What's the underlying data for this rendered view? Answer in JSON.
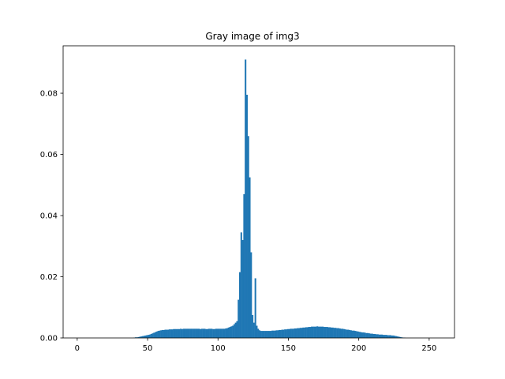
{
  "chart_data": {
    "type": "bar",
    "title": "Gray image of img3",
    "xlabel": "",
    "ylabel": "",
    "xlim": [
      -10,
      268
    ],
    "ylim": [
      0,
      0.0955
    ],
    "xticks": [
      0,
      50,
      100,
      150,
      200,
      250
    ],
    "xtick_labels": [
      "0",
      "50",
      "100",
      "150",
      "200",
      "250"
    ],
    "yticks": [
      0.0,
      0.02,
      0.04,
      0.06,
      0.08
    ],
    "ytick_labels": [
      "0.00",
      "0.02",
      "0.04",
      "0.06",
      "0.08"
    ],
    "grid": false,
    "bar_color": "#1f77b4",
    "bins": {
      "start": 0,
      "width": 1
    },
    "values": [
      0.0,
      0.0,
      0.0,
      0.0,
      0.0,
      0.0,
      0.0,
      0.0,
      0.0,
      0.0,
      0.0,
      0.0,
      0.0,
      0.0,
      0.0,
      0.0,
      0.0,
      0.0,
      0.0,
      0.0,
      0.0,
      0.0,
      0.0,
      0.0,
      0.0,
      0.0,
      0.0,
      0.0,
      0.0,
      0.0,
      0.0,
      0.0,
      0.0,
      0.0,
      0.0,
      0.0,
      0.0,
      0.0,
      0.0,
      0.0,
      0.0001,
      0.0002,
      0.0002,
      0.0003,
      0.0004,
      0.0005,
      0.0006,
      0.0007,
      0.0008,
      0.0009,
      0.001,
      0.0011,
      0.0013,
      0.0015,
      0.0017,
      0.0019,
      0.0021,
      0.0023,
      0.0024,
      0.0025,
      0.0026,
      0.0026,
      0.0027,
      0.0027,
      0.0027,
      0.0028,
      0.0028,
      0.0028,
      0.0029,
      0.0029,
      0.0029,
      0.0029,
      0.0029,
      0.003,
      0.0029,
      0.003,
      0.003,
      0.003,
      0.003,
      0.003,
      0.003,
      0.003,
      0.003,
      0.003,
      0.003,
      0.003,
      0.003,
      0.0029,
      0.003,
      0.003,
      0.003,
      0.0029,
      0.0029,
      0.003,
      0.003,
      0.003,
      0.0029,
      0.0029,
      0.003,
      0.003,
      0.003,
      0.003,
      0.003,
      0.003,
      0.003,
      0.0031,
      0.0032,
      0.0034,
      0.0036,
      0.0038,
      0.004,
      0.0045,
      0.005,
      0.0055,
      0.0125,
      0.0215,
      0.0345,
      0.032,
      0.047,
      0.091,
      0.0795,
      0.066,
      0.0525,
      0.028,
      0.0075,
      0.005,
      0.0195,
      0.004,
      0.003,
      0.0025,
      0.0023,
      0.0023,
      0.0023,
      0.0023,
      0.0023,
      0.0023,
      0.0023,
      0.0023,
      0.0024,
      0.0024,
      0.0024,
      0.0025,
      0.0025,
      0.0026,
      0.0026,
      0.0027,
      0.0027,
      0.0028,
      0.0028,
      0.0029,
      0.0029,
      0.003,
      0.003,
      0.003,
      0.0031,
      0.0031,
      0.0032,
      0.0032,
      0.0033,
      0.0033,
      0.0034,
      0.0034,
      0.0035,
      0.0035,
      0.0036,
      0.0036,
      0.0037,
      0.0037,
      0.0037,
      0.0037,
      0.0038,
      0.0037,
      0.0037,
      0.0037,
      0.0037,
      0.0036,
      0.0036,
      0.0036,
      0.0035,
      0.0035,
      0.0034,
      0.0034,
      0.0033,
      0.0033,
      0.0032,
      0.0032,
      0.0031,
      0.003,
      0.003,
      0.0029,
      0.0028,
      0.0027,
      0.0027,
      0.0026,
      0.0025,
      0.0024,
      0.0024,
      0.0023,
      0.0022,
      0.0021,
      0.002,
      0.0019,
      0.0018,
      0.0018,
      0.0017,
      0.0016,
      0.0016,
      0.0015,
      0.0014,
      0.0014,
      0.0013,
      0.0013,
      0.0012,
      0.0012,
      0.0011,
      0.0011,
      0.0011,
      0.001,
      0.001,
      0.001,
      0.0009,
      0.0009,
      0.0009,
      0.0008,
      0.0008,
      0.0007,
      0.0006,
      0.0005,
      0.0004,
      0.0003,
      0.0002,
      0.0001,
      0.0001,
      0.0,
      0.0,
      0.0,
      0.0,
      0.0,
      0.0,
      0.0,
      0.0,
      0.0,
      0.0,
      0.0,
      0.0,
      0.0,
      0.0,
      0.0,
      0.0,
      0.0,
      0.0,
      0.0,
      0.0,
      0.0,
      0.0,
      0.0
    ]
  }
}
